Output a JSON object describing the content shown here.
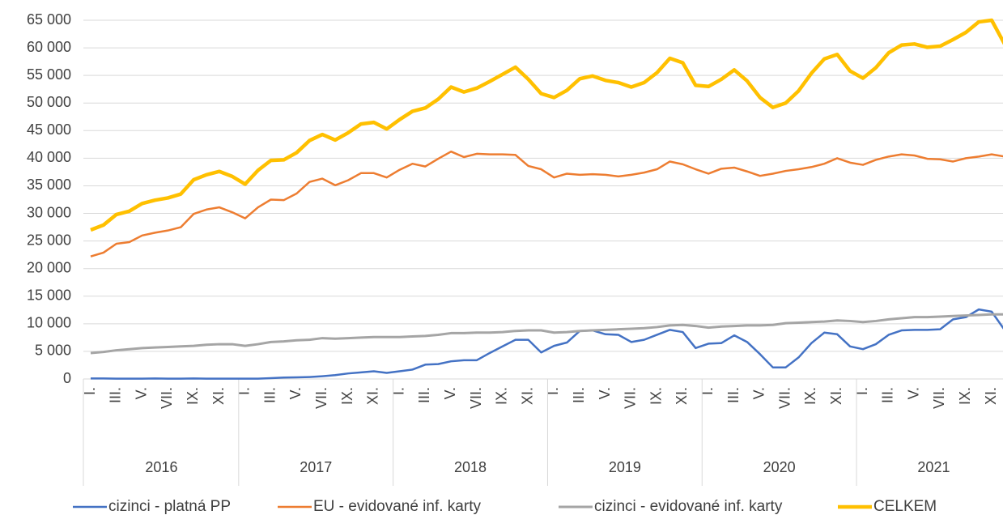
{
  "chart_data": {
    "type": "line",
    "categories": [
      "I.",
      null,
      "III.",
      null,
      "V.",
      null,
      "VII.",
      null,
      "IX.",
      null,
      "XI.",
      null,
      "I.",
      null,
      "III.",
      null,
      "V.",
      null,
      "VII.",
      null,
      "IX.",
      null,
      "XI.",
      null,
      "I.",
      null,
      "III.",
      null,
      "V.",
      null,
      "VII.",
      null,
      "IX.",
      null,
      "XI.",
      null,
      "I.",
      null,
      "III.",
      null,
      "V.",
      null,
      "VII.",
      null,
      "IX.",
      null,
      "XI.",
      null,
      "I.",
      null,
      "III.",
      null,
      "V.",
      null,
      "VII.",
      null,
      "IX.",
      null,
      "XI.",
      null,
      "I.",
      null,
      "III.",
      null,
      "V.",
      null,
      "VII.",
      null,
      "IX.",
      null,
      "XI.",
      null
    ],
    "years": [
      "2016",
      "2017",
      "2018",
      "2019",
      "2020",
      "2021"
    ],
    "series": [
      {
        "name": "cizinci - platná PP",
        "color": "#4472c4",
        "values": [
          100,
          100,
          50,
          50,
          50,
          100,
          50,
          50,
          100,
          50,
          50,
          50,
          50,
          50,
          150,
          250,
          300,
          350,
          500,
          700,
          1000,
          1200,
          1400,
          1100,
          1400,
          1700,
          2600,
          2700,
          3200,
          3400,
          3400,
          4700,
          5900,
          7100,
          7100,
          4800,
          6000,
          6600,
          8700,
          8800,
          8100,
          8000,
          6700,
          7100,
          8000,
          8900,
          8500,
          5600,
          6400,
          6500,
          7900,
          6700,
          4500,
          2100,
          2100,
          3900,
          6500,
          8400,
          8100,
          5900,
          5400,
          6300,
          8000,
          8800,
          8900,
          8900,
          9000,
          10800,
          11200,
          12600,
          12200,
          8900
        ]
      },
      {
        "name": "EU - evidované inf. karty",
        "color": "#ed7d31",
        "values": [
          22200,
          22900,
          24500,
          24800,
          26000,
          26500,
          26900,
          27500,
          29900,
          30700,
          31100,
          30200,
          29100,
          31100,
          32500,
          32400,
          33600,
          35700,
          36300,
          35100,
          36000,
          37300,
          37300,
          36500,
          37900,
          39000,
          38500,
          39900,
          41200,
          40200,
          40800,
          40700,
          40700,
          40600,
          38600,
          38000,
          36500,
          37200,
          37000,
          37100,
          37000,
          36700,
          37000,
          37400,
          38000,
          39400,
          38900,
          38000,
          37200,
          38100,
          38300,
          37600,
          36800,
          37200,
          37700,
          38000,
          38400,
          39000,
          40000,
          39200,
          38800,
          39700,
          40300,
          40700,
          40500,
          39900,
          39800,
          39400,
          40000,
          40300,
          40700,
          40300
        ]
      },
      {
        "name": "cizinci - evidované inf. karty",
        "color": "#a5a5a5",
        "values": [
          4700,
          4900,
          5200,
          5400,
          5600,
          5700,
          5800,
          5900,
          6000,
          6200,
          6300,
          6300,
          6000,
          6300,
          6700,
          6800,
          7000,
          7100,
          7400,
          7300,
          7400,
          7500,
          7600,
          7600,
          7600,
          7700,
          7800,
          8000,
          8300,
          8300,
          8400,
          8400,
          8500,
          8700,
          8800,
          8800,
          8400,
          8500,
          8700,
          8800,
          8900,
          9000,
          9100,
          9200,
          9400,
          9700,
          9800,
          9600,
          9300,
          9500,
          9600,
          9700,
          9700,
          9800,
          10100,
          10200,
          10300,
          10400,
          10600,
          10500,
          10300,
          10500,
          10800,
          11000,
          11200,
          11200,
          11300,
          11400,
          11500,
          11600,
          11700,
          11700
        ]
      },
      {
        "name": "CELKEM",
        "color": "#ffc000",
        "values": [
          27000,
          27900,
          29800,
          30400,
          31800,
          32400,
          32800,
          33500,
          36100,
          37000,
          37600,
          36700,
          35300,
          37800,
          39600,
          39700,
          41000,
          43200,
          44300,
          43300,
          44600,
          46200,
          46500,
          45300,
          47000,
          48500,
          49100,
          50700,
          52900,
          52000,
          52700,
          53900,
          55200,
          56500,
          54300,
          51700,
          51000,
          52300,
          54400,
          54900,
          54100,
          53700,
          52900,
          53700,
          55500,
          58100,
          57300,
          53200,
          53000,
          54300,
          56000,
          54000,
          51000,
          49200,
          50000,
          52200,
          55400,
          58000,
          58800,
          55800,
          54500,
          56400,
          59100,
          60500,
          60700,
          60100,
          60300,
          61500,
          62800,
          64700,
          65000,
          60700
        ]
      }
    ],
    "ylim": [
      0,
      65000
    ],
    "yticks": [
      0,
      {
        "value": 5000,
        "label": "5 000"
      },
      {
        "value": 10000,
        "label": "10 000"
      },
      {
        "value": 15000,
        "label": "15 000"
      },
      {
        "value": 20000,
        "label": "20 000"
      },
      {
        "value": 25000,
        "label": "25 000"
      },
      {
        "value": 30000,
        "label": "30 000"
      },
      {
        "value": 35000,
        "label": "35 000"
      },
      {
        "value": 40000,
        "label": "40 000"
      },
      {
        "value": 45000,
        "label": "45 000"
      },
      {
        "value": 50000,
        "label": "50 000"
      },
      {
        "value": 55000,
        "label": "55 000"
      },
      {
        "value": 60000,
        "label": "60 000"
      },
      {
        "value": 65000,
        "label": "65 000"
      }
    ],
    "grid": true,
    "legend": "bottom"
  }
}
